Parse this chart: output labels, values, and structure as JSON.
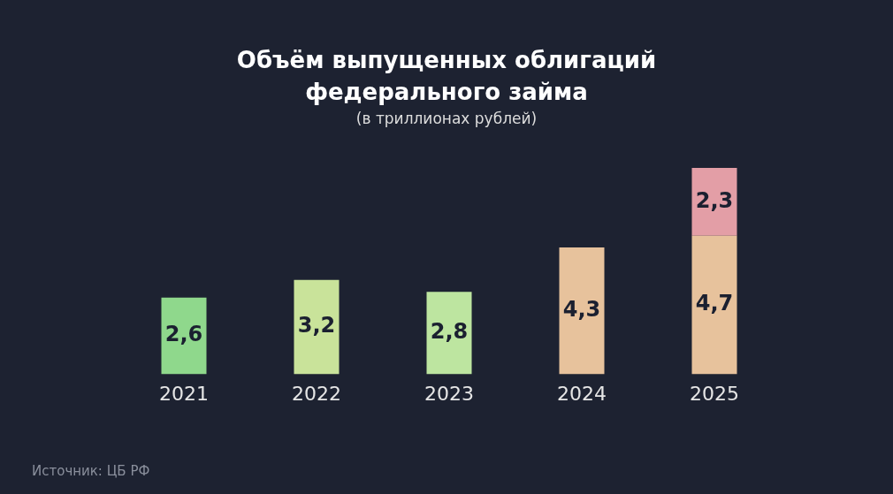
{
  "chart_data": {
    "type": "bar",
    "title": "Объём выпущенных облигаций федерального займа",
    "subtitle": "(в триллионах рублей)",
    "categories": [
      "2021",
      "2022",
      "2023",
      "2024",
      "2025"
    ],
    "stacked": true,
    "series": [
      {
        "colors": [
          "#8fd88c",
          "#c9e39a",
          "#bde5a0",
          "#e7c29c",
          "#e7c29c"
        ],
        "values": [
          2.6,
          3.2,
          2.8,
          4.3,
          4.7
        ],
        "value_labels": [
          "2,6",
          "3,2",
          "2,8",
          "4,3",
          "4,7"
        ]
      },
      {
        "colors": [
          "#e39ea6",
          "#e39ea6",
          "#e39ea6",
          "#e39ea6",
          "#e39ea6"
        ],
        "values": [
          null,
          null,
          null,
          null,
          2.3
        ],
        "value_labels": [
          null,
          null,
          null,
          null,
          "2,3"
        ]
      }
    ],
    "annotations": [
      "Источник: ЦБ РФ"
    ]
  }
}
